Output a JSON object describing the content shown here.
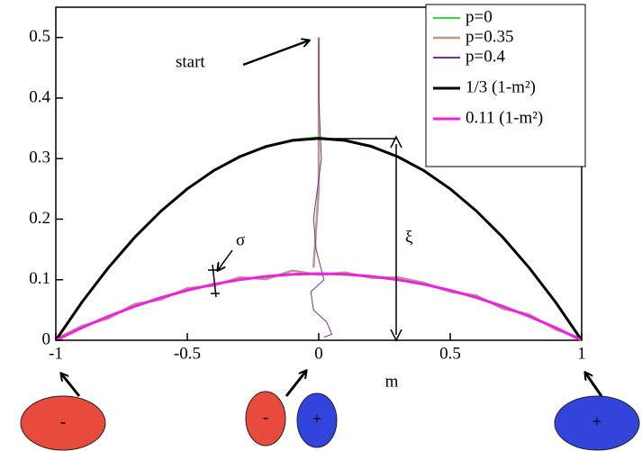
{
  "chart_data": {
    "type": "line",
    "x_label": "m",
    "xlim": [
      -1,
      1
    ],
    "ylim": [
      0,
      0.55
    ],
    "xticks": [
      -1,
      -0.5,
      0,
      0.5,
      1
    ],
    "yticks": [
      0,
      0.1,
      0.2,
      0.3,
      0.4,
      0.5
    ],
    "legend": "upper right",
    "annotations": {
      "start": "start",
      "sigma": "σ",
      "xi": "ξ"
    },
    "states": [
      [
        "-"
      ],
      [
        "-",
        "+"
      ],
      [
        "+"
      ]
    ],
    "series": [
      {
        "name": "p=0",
        "color": "#33dd33",
        "width": 1.2,
        "x": [
          0,
          0,
          0,
          0,
          -1,
          -0.9,
          -0.8,
          -0.7,
          -0.6,
          -0.5,
          -0.4,
          -0.3,
          -0.2,
          -0.1,
          0,
          0.1,
          0.2,
          0.3,
          0.4,
          0.5,
          0.6,
          0.7,
          0.8,
          0.9,
          1
        ],
        "values": [
          0.5,
          0.4,
          0.34,
          null,
          0,
          0.065,
          0.118,
          0.172,
          0.212,
          0.252,
          0.279,
          0.305,
          0.318,
          0.332,
          0.336,
          0.33,
          0.322,
          0.302,
          0.281,
          0.249,
          0.214,
          0.169,
          0.121,
          0.062,
          0
        ]
      },
      {
        "name": "p=0.35",
        "color": "#b89a8a",
        "width": 2.5,
        "x": [
          0,
          0,
          -0.02,
          0,
          -1,
          -0.9,
          -0.8,
          -0.7,
          -0.6,
          -0.5,
          -0.4,
          -0.3,
          -0.2,
          -0.1,
          0,
          0.1,
          0.2,
          0.3,
          0.4,
          0.5,
          0.6,
          0.7,
          0.8,
          0.9,
          1
        ],
        "values": [
          0.5,
          0.25,
          0.12,
          null,
          0.002,
          0.024,
          0.036,
          0.06,
          0.067,
          0.086,
          0.09,
          0.104,
          0.101,
          0.115,
          0.108,
          0.112,
          0.103,
          0.104,
          0.095,
          0.08,
          0.074,
          0.052,
          0.043,
          0.018,
          0.003
        ]
      },
      {
        "name": "p=0.4",
        "color": "#7030a0",
        "width": 1,
        "x": [
          0,
          0,
          0.01,
          -0.02,
          -0.01,
          0.02,
          -0.03,
          -0.02,
          0.03,
          0.05,
          0.02
        ],
        "values": [
          0.5,
          0.4,
          0.3,
          0.2,
          0.15,
          0.1,
          0.08,
          0.05,
          0.03,
          0.01,
          0.005
        ]
      },
      {
        "name": "1/3 (1-m²)",
        "color": "#000000",
        "width": 3,
        "x": [
          -1,
          -0.9,
          -0.8,
          -0.7,
          -0.6,
          -0.5,
          -0.4,
          -0.3,
          -0.2,
          -0.1,
          0,
          0.1,
          0.2,
          0.3,
          0.4,
          0.5,
          0.6,
          0.7,
          0.8,
          0.9,
          1
        ],
        "values": [
          0,
          0.0633,
          0.12,
          0.17,
          0.2133,
          0.25,
          0.28,
          0.3033,
          0.32,
          0.33,
          0.3333,
          0.33,
          0.32,
          0.3033,
          0.28,
          0.25,
          0.2133,
          0.17,
          0.12,
          0.0633,
          0
        ]
      },
      {
        "name": "0.11 (1-m²)",
        "color": "#ee22dd",
        "width": 3,
        "x": [
          -1,
          -0.9,
          -0.8,
          -0.7,
          -0.6,
          -0.5,
          -0.4,
          -0.3,
          -0.2,
          -0.1,
          0,
          0.1,
          0.2,
          0.3,
          0.4,
          0.5,
          0.6,
          0.7,
          0.8,
          0.9,
          1
        ],
        "values": [
          0,
          0.0209,
          0.0396,
          0.0561,
          0.0704,
          0.0825,
          0.0924,
          0.1001,
          0.1056,
          0.1089,
          0.11,
          0.1089,
          0.1056,
          0.1001,
          0.0924,
          0.0825,
          0.0704,
          0.0561,
          0.0396,
          0.0209,
          0
        ]
      }
    ]
  }
}
